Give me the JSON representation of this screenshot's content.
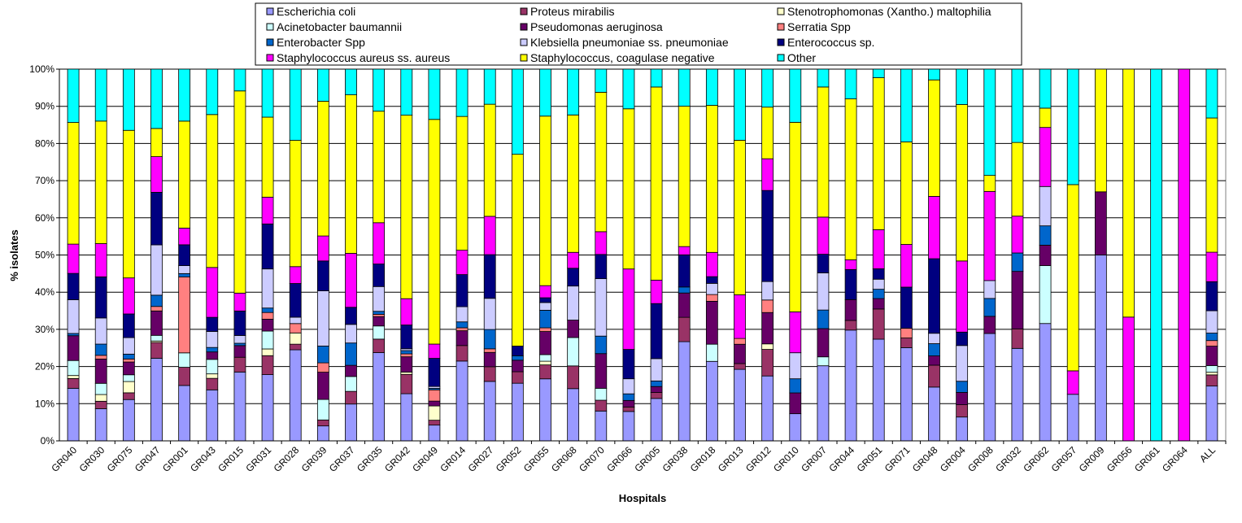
{
  "chart_data": {
    "type": "stacked-bar-100",
    "xlabel": "Hospitals",
    "ylabel": "% isolates",
    "ylim": [
      0,
      100
    ],
    "yticks": [
      "0%",
      "10%",
      "20%",
      "30%",
      "40%",
      "50%",
      "60%",
      "70%",
      "80%",
      "90%",
      "100%"
    ],
    "grid": true,
    "legend_position": "top",
    "categories": [
      "GR040",
      "GR030",
      "GR075",
      "GR047",
      "GR001",
      "GR043",
      "GR015",
      "GR031",
      "GR028",
      "GR039",
      "GR037",
      "GR035",
      "GR042",
      "GR049",
      "GR014",
      "GR027",
      "GR052",
      "GR055",
      "GR068",
      "GR070",
      "GR066",
      "GR005",
      "GR038",
      "GR018",
      "GR013",
      "GR012",
      "GR010",
      "GR007",
      "GR044",
      "GR051",
      "GR071",
      "GR048",
      "GR004",
      "GR008",
      "GR032",
      "GR062",
      "GR057",
      "GR009",
      "GR056",
      "GR061",
      "GR064",
      "ALL"
    ],
    "series": [
      {
        "name": "Escherichia coli",
        "color": "#9999ff",
        "values": [
          14,
          8.6,
          11,
          22,
          14.6,
          13.7,
          17.7,
          17.8,
          24.3,
          4,
          9.9,
          23.5,
          12.9,
          4.2,
          21.6,
          16.6,
          15.5,
          16.9,
          13.8,
          8,
          8,
          11.4,
          26.5,
          21.3,
          18.5,
          17.6,
          7.3,
          20.2,
          29.8,
          27.3,
          25.1,
          14.5,
          6.4,
          28.8,
          25.1,
          31.6,
          12.5,
          50,
          0,
          0,
          0,
          14.7
        ]
      },
      {
        "name": "Proteus mirabilis",
        "color": "#993366",
        "values": [
          2.6,
          2,
          1.8,
          4.2,
          4.8,
          3.1,
          3.8,
          5.1,
          1.5,
          1.6,
          3.4,
          3.6,
          5.3,
          1.3,
          4.2,
          4.1,
          3.1,
          3.8,
          6,
          2.9,
          1.2,
          1.6,
          6.5,
          0,
          1.5,
          7.2,
          0,
          0,
          2.6,
          8.1,
          2.6,
          5.9,
          3.3,
          0,
          5.3,
          0,
          0,
          0,
          0,
          0,
          0,
          3
        ]
      },
      {
        "name": "Stenotrophomonas (Xantho.) maltophilia",
        "color": "#ffffcc",
        "values": [
          0.8,
          1.8,
          3,
          0.4,
          0,
          1.2,
          0,
          1.8,
          3,
          0,
          0,
          0,
          0.6,
          3.8,
          0,
          0,
          0,
          1,
          0,
          0,
          0,
          0,
          0,
          0,
          0,
          1.5,
          0,
          0,
          0,
          0,
          0,
          0,
          0,
          0,
          0,
          0,
          0,
          0,
          0,
          0,
          0,
          0.7
        ]
      },
      {
        "name": "Acinetobacter baumannii",
        "color": "#ccffff",
        "values": [
          4,
          3,
          1.8,
          1.5,
          3.8,
          3.9,
          0,
          4.8,
          0,
          5.5,
          4,
          3.5,
          0,
          0,
          0,
          0,
          0,
          1.8,
          7.5,
          3.2,
          0,
          0,
          0,
          4.6,
          0,
          0,
          0,
          2.4,
          0,
          0,
          0,
          0,
          0,
          0,
          0,
          15.6,
          0,
          0,
          0,
          0,
          0,
          1.8
        ]
      },
      {
        "name": "Pseudomonas aeruginosa",
        "color": "#660066",
        "values": [
          6.6,
          6.5,
          3.4,
          6.5,
          0,
          2,
          3,
          3.2,
          0,
          7.3,
          3,
          2.5,
          4.2,
          1.3,
          4,
          4,
          3.1,
          6.3,
          4.6,
          9.3,
          1.8,
          1.6,
          6.5,
          11.5,
          5,
          8.5,
          5.6,
          7.6,
          5.6,
          2.8,
          0,
          2.5,
          3.3,
          4.6,
          15.6,
          5.5,
          0,
          17,
          0,
          0,
          0,
          5.2
        ]
      },
      {
        "name": "Serratia Spp",
        "color": "#ff8080",
        "values": [
          0,
          1,
          0.8,
          1.2,
          20,
          0,
          0,
          1.8,
          2.5,
          2.5,
          0,
          0.6,
          0.8,
          3,
          0.8,
          1,
          0,
          1,
          0,
          0,
          0,
          0,
          0,
          1.8,
          1.5,
          3.4,
          0,
          0,
          0,
          0,
          2.6,
          0,
          0,
          0,
          0,
          0,
          0,
          0,
          0,
          0,
          0,
          1.5
        ]
      },
      {
        "name": "Enterobacter Spp",
        "color": "#0066cc",
        "values": [
          0.6,
          3,
          1.3,
          3,
          0.9,
          1.2,
          0.6,
          1.2,
          0,
          4.5,
          6,
          0.8,
          0.9,
          0.4,
          1.6,
          5.4,
          1.2,
          4.8,
          0,
          4.7,
          1.8,
          1.5,
          1.6,
          0,
          0,
          0,
          3.8,
          5,
          0,
          2.5,
          0,
          3.3,
          3,
          4.8,
          5,
          5.2,
          0,
          0,
          0,
          0,
          0,
          2
        ]
      },
      {
        "name": "Klebsiella pneumoniae ss. pneumoniae",
        "color": "#ccccff",
        "values": [
          9,
          7,
          4.4,
          13.4,
          2.1,
          4.3,
          2,
          10.5,
          1.7,
          14.8,
          5,
          6.6,
          0.5,
          0.5,
          4.1,
          8.7,
          0,
          2.1,
          9,
          15.4,
          4.1,
          6,
          0,
          3,
          0,
          5,
          7,
          10,
          0,
          2.7,
          0,
          2.8,
          9.6,
          4.8,
          0,
          10.6,
          0,
          0,
          0,
          0,
          0,
          6
        ]
      },
      {
        "name": "Enterococcus sp.",
        "color": "#000080",
        "values": [
          7,
          11,
          6.3,
          14,
          5.5,
          3.8,
          6.3,
          12.1,
          9,
          8,
          4.6,
          6,
          6.5,
          7.5,
          8.7,
          12.2,
          2.6,
          1.3,
          4.7,
          6.5,
          8,
          14.8,
          8.6,
          1.8,
          0,
          24.7,
          0,
          5,
          8.1,
          2.8,
          11.1,
          20.1,
          3.6,
          0,
          0,
          0,
          0,
          0,
          0,
          0,
          0,
          7.8
        ]
      },
      {
        "name": "Staphylococcus aureus ss. aureus",
        "color": "#ff00ff",
        "values": [
          7.8,
          8.9,
          9.6,
          9.5,
          4.4,
          13.4,
          4.6,
          7.2,
          4.5,
          6.7,
          14.5,
          11,
          7.2,
          3.8,
          6.6,
          10.7,
          0,
          3.3,
          4.2,
          6.1,
          21.9,
          6.3,
          2.2,
          6.5,
          11.3,
          8.6,
          11,
          10,
          2.6,
          10.5,
          11.5,
          16.8,
          19.1,
          23.9,
          10,
          15.9,
          6.3,
          0,
          33.3,
          0,
          100,
          7.9
        ]
      },
      {
        "name": "Staphylococcus, coagulase negative",
        "color": "#ffff00",
        "values": [
          32.4,
          32.8,
          39.3,
          7.5,
          28.2,
          41.1,
          52,
          21.5,
          33.7,
          36.1,
          42.6,
          29.7,
          50.2,
          59.9,
          36.2,
          31.3,
          51.6,
          46.2,
          36.3,
          37.4,
          43.6,
          51.9,
          37.5,
          39.4,
          40,
          14,
          51,
          35,
          43.3,
          40.8,
          27.6,
          31.4,
          42,
          4.3,
          20,
          5.2,
          50,
          33,
          66.7,
          0,
          0,
          36
        ]
      },
      {
        "name": "Other",
        "color": "#00ffff",
        "values": [
          14.2,
          13.9,
          16.3,
          15.8,
          13.7,
          12.2,
          5.6,
          12.9,
          19,
          8.6,
          6.9,
          11.2,
          12.6,
          13.4,
          12.8,
          9.8,
          22.9,
          12.8,
          12.1,
          6.2,
          10.8,
          4.8,
          9.9,
          9.7,
          18.4,
          10.3,
          14.3,
          4.8,
          8,
          2.3,
          19.6,
          2.9,
          9.5,
          28.5,
          19.9,
          10.5,
          31,
          0,
          0,
          100,
          0,
          13.1
        ]
      }
    ]
  }
}
